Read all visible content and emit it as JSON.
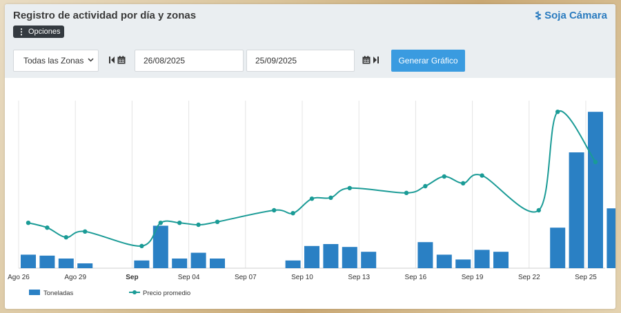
{
  "header": {
    "title": "Registro de actividad por día y zonas",
    "brand": "Soja Cámara",
    "options_label": "Opciones"
  },
  "filters": {
    "zone": "Todas las Zonas",
    "start_date": "26/08/2025",
    "end_date": "25/09/2025",
    "generate_label": "Generar Gráfico"
  },
  "colors": {
    "bar": "#2a80c4",
    "line": "#1a9b96",
    "button": "#3a9be0"
  },
  "chart_data": {
    "type": "bar",
    "x_tick_labels": [
      "Ago 26",
      "Ago 29",
      "Sep",
      "Sep 04",
      "Sep 07",
      "Sep 10",
      "Sep 13",
      "Sep 16",
      "Sep 19",
      "Sep 22",
      "Sep 25"
    ],
    "grid": true,
    "legend_position": "bottom-left",
    "series": [
      {
        "name": "Toneladas",
        "type": "bar",
        "points": [
          {
            "x": "2025-08-26",
            "y": 14
          },
          {
            "x": "2025-08-27",
            "y": 13
          },
          {
            "x": "2025-08-28",
            "y": 10
          },
          {
            "x": "2025-08-29",
            "y": 5
          },
          {
            "x": "2025-09-01",
            "y": 8
          },
          {
            "x": "2025-09-02",
            "y": 44
          },
          {
            "x": "2025-09-03",
            "y": 10
          },
          {
            "x": "2025-09-04",
            "y": 16
          },
          {
            "x": "2025-09-05",
            "y": 10
          },
          {
            "x": "2025-09-09",
            "y": 8
          },
          {
            "x": "2025-09-10",
            "y": 23
          },
          {
            "x": "2025-09-11",
            "y": 25
          },
          {
            "x": "2025-09-12",
            "y": 22
          },
          {
            "x": "2025-09-13",
            "y": 17
          },
          {
            "x": "2025-09-16",
            "y": 27
          },
          {
            "x": "2025-09-17",
            "y": 14
          },
          {
            "x": "2025-09-18",
            "y": 9
          },
          {
            "x": "2025-09-19",
            "y": 19
          },
          {
            "x": "2025-09-20",
            "y": 17
          },
          {
            "x": "2025-09-23",
            "y": 42
          },
          {
            "x": "2025-09-24",
            "y": 120
          },
          {
            "x": "2025-09-25",
            "y": 162
          },
          {
            "x": "2025-09-26",
            "y": 62
          }
        ]
      },
      {
        "name": "Precio promedio",
        "type": "line",
        "points": [
          {
            "x": "2025-08-26",
            "y": 47
          },
          {
            "x": "2025-08-27",
            "y": 42
          },
          {
            "x": "2025-08-28",
            "y": 32
          },
          {
            "x": "2025-08-29",
            "y": 38
          },
          {
            "x": "2025-09-01",
            "y": 23
          },
          {
            "x": "2025-09-02",
            "y": 47
          },
          {
            "x": "2025-09-03",
            "y": 47
          },
          {
            "x": "2025-09-04",
            "y": 45
          },
          {
            "x": "2025-09-05",
            "y": 48
          },
          {
            "x": "2025-09-08",
            "y": 60
          },
          {
            "x": "2025-09-09",
            "y": 57
          },
          {
            "x": "2025-09-10",
            "y": 72
          },
          {
            "x": "2025-09-11",
            "y": 73
          },
          {
            "x": "2025-09-12",
            "y": 83
          },
          {
            "x": "2025-09-15",
            "y": 78
          },
          {
            "x": "2025-09-16",
            "y": 85
          },
          {
            "x": "2025-09-17",
            "y": 95
          },
          {
            "x": "2025-09-18",
            "y": 88
          },
          {
            "x": "2025-09-19",
            "y": 96
          },
          {
            "x": "2025-09-22",
            "y": 60
          },
          {
            "x": "2025-09-23",
            "y": 162
          },
          {
            "x": "2025-09-25",
            "y": 110
          }
        ]
      }
    ]
  }
}
